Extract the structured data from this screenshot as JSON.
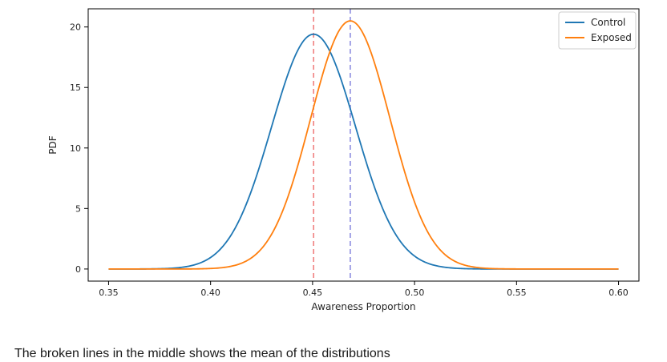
{
  "chart_data": {
    "type": "line",
    "title": "",
    "xlabel": "Awareness Proportion",
    "ylabel": "PDF",
    "xlim": [
      0.34,
      0.61
    ],
    "ylim": [
      -1.0,
      21.5
    ],
    "xticks": [
      0.35,
      0.4,
      0.45,
      0.5,
      0.55,
      0.6
    ],
    "xtick_labels": [
      "0.35",
      "0.40",
      "0.45",
      "0.50",
      "0.55",
      "0.60"
    ],
    "yticks": [
      0,
      5,
      10,
      15,
      20
    ],
    "ytick_labels": [
      "0",
      "5",
      "10",
      "15",
      "20"
    ],
    "grid": false,
    "legend_position": "top-right",
    "x_range": [
      0.35,
      0.6
    ],
    "series": [
      {
        "name": "Control",
        "distribution": "normal",
        "mean": 0.4505,
        "peak": 19.4,
        "color": "#1f77b4"
      },
      {
        "name": "Exposed",
        "distribution": "normal",
        "mean": 0.4685,
        "peak": 20.5,
        "color": "#ff7f0e"
      }
    ],
    "mean_lines": [
      {
        "x": 0.4505,
        "color": "#f08080",
        "style": "dashed"
      },
      {
        "x": 0.4685,
        "color": "#8f8fe0",
        "style": "dashed"
      }
    ]
  },
  "caption": "The broken lines in the middle shows the mean of the distributions"
}
